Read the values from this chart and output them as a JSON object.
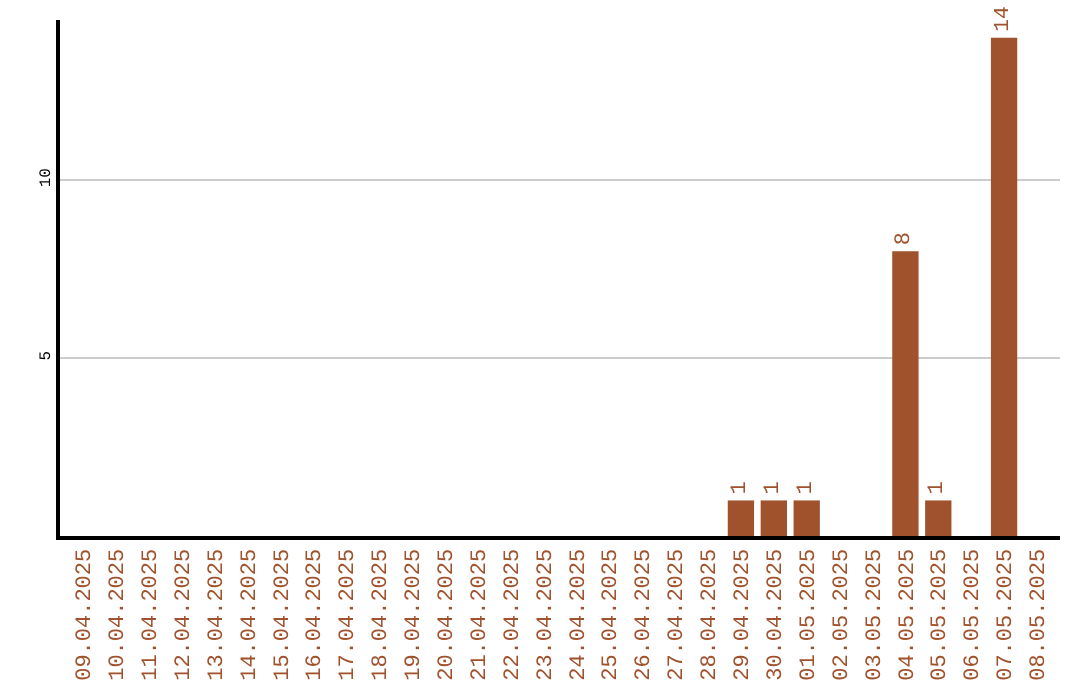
{
  "chart_data": {
    "type": "bar",
    "categories": [
      "09.04.2025",
      "10.04.2025",
      "11.04.2025",
      "12.04.2025",
      "13.04.2025",
      "14.04.2025",
      "15.04.2025",
      "16.04.2025",
      "17.04.2025",
      "18.04.2025",
      "19.04.2025",
      "20.04.2025",
      "21.04.2025",
      "22.04.2025",
      "23.04.2025",
      "24.04.2025",
      "25.04.2025",
      "26.04.2025",
      "27.04.2025",
      "28.04.2025",
      "29.04.2025",
      "30.04.2025",
      "01.05.2025",
      "02.05.2025",
      "03.05.2025",
      "04.05.2025",
      "05.05.2025",
      "06.05.2025",
      "07.05.2025",
      "08.05.2025"
    ],
    "values": [
      0,
      0,
      0,
      0,
      0,
      0,
      0,
      0,
      0,
      0,
      0,
      0,
      0,
      0,
      0,
      0,
      0,
      0,
      0,
      0,
      1,
      1,
      1,
      0,
      0,
      8,
      1,
      0,
      14,
      0
    ],
    "value_labels": [
      null,
      null,
      null,
      null,
      null,
      null,
      null,
      null,
      null,
      null,
      null,
      null,
      null,
      null,
      null,
      null,
      null,
      null,
      null,
      null,
      "1",
      "1",
      "1",
      null,
      null,
      "8",
      "1",
      null,
      "14",
      null
    ],
    "color": "#a0522d",
    "ylim": [
      0,
      14.5
    ],
    "yticks": [
      5,
      10
    ],
    "grid": "y",
    "legend": false
  }
}
